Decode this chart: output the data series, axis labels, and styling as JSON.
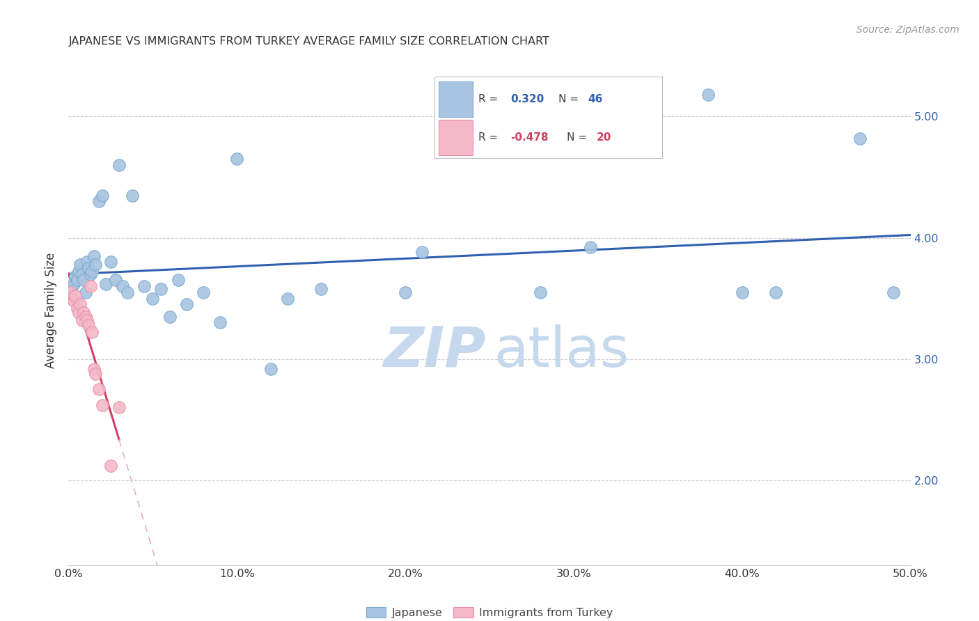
{
  "title": "JAPANESE VS IMMIGRANTS FROM TURKEY AVERAGE FAMILY SIZE CORRELATION CHART",
  "source": "Source: ZipAtlas.com",
  "ylabel": "Average Family Size",
  "xlim": [
    0.0,
    0.5
  ],
  "ylim": [
    1.3,
    5.5
  ],
  "yticks_right": [
    2.0,
    3.0,
    4.0,
    5.0
  ],
  "xtick_labels": [
    "0.0%",
    "10.0%",
    "20.0%",
    "30.0%",
    "40.0%",
    "50.0%"
  ],
  "japanese_x": [
    0.001,
    0.002,
    0.003,
    0.004,
    0.005,
    0.006,
    0.007,
    0.008,
    0.009,
    0.01,
    0.011,
    0.012,
    0.013,
    0.014,
    0.015,
    0.016,
    0.018,
    0.02,
    0.022,
    0.025,
    0.028,
    0.03,
    0.032,
    0.035,
    0.038,
    0.045,
    0.05,
    0.055,
    0.06,
    0.065,
    0.07,
    0.08,
    0.09,
    0.1,
    0.12,
    0.13,
    0.15,
    0.2,
    0.21,
    0.28,
    0.31,
    0.38,
    0.4,
    0.42,
    0.47,
    0.49
  ],
  "japanese_y": [
    3.55,
    3.6,
    3.62,
    3.68,
    3.65,
    3.72,
    3.78,
    3.7,
    3.65,
    3.55,
    3.8,
    3.75,
    3.7,
    3.72,
    3.85,
    3.78,
    4.3,
    4.35,
    3.62,
    3.8,
    3.65,
    4.6,
    3.6,
    3.55,
    4.35,
    3.6,
    3.5,
    3.58,
    3.35,
    3.65,
    3.45,
    3.55,
    3.3,
    4.65,
    2.92,
    3.5,
    3.58,
    3.55,
    3.88,
    3.55,
    3.92,
    5.18,
    3.55,
    3.55,
    4.82,
    3.55
  ],
  "turkey_x": [
    0.001,
    0.002,
    0.003,
    0.004,
    0.005,
    0.006,
    0.007,
    0.008,
    0.009,
    0.01,
    0.011,
    0.012,
    0.013,
    0.014,
    0.015,
    0.016,
    0.018,
    0.02,
    0.025,
    0.03
  ],
  "turkey_y": [
    3.55,
    3.5,
    3.48,
    3.52,
    3.42,
    3.38,
    3.45,
    3.32,
    3.38,
    3.35,
    3.32,
    3.28,
    3.6,
    3.22,
    2.92,
    2.88,
    2.75,
    2.62,
    2.12,
    2.6
  ],
  "japanese_color": "#a8c4e0",
  "japanese_edge": "#7aaad0",
  "turkey_color": "#f4b8c8",
  "turkey_edge": "#e890a8",
  "regression_blue_color": "#3060b0",
  "regression_pink_solid_color": "#d04060",
  "regression_pink_dash_color": "#e8b0be",
  "watermark_zip_color": "#c5d8ee",
  "watermark_atlas_color": "#c5d8ee",
  "background_color": "#ffffff",
  "grid_color": "#cccccc",
  "title_color": "#333333",
  "source_color": "#999999",
  "axis_label_color": "#333333",
  "tick_label_color": "#333333",
  "right_tick_color": "#3060b0",
  "legend_r_color_blue": "#3060b0",
  "legend_r_color_pink": "#d04060",
  "legend_n_color_blue": "#3060b0",
  "legend_n_color_pink": "#d04060"
}
